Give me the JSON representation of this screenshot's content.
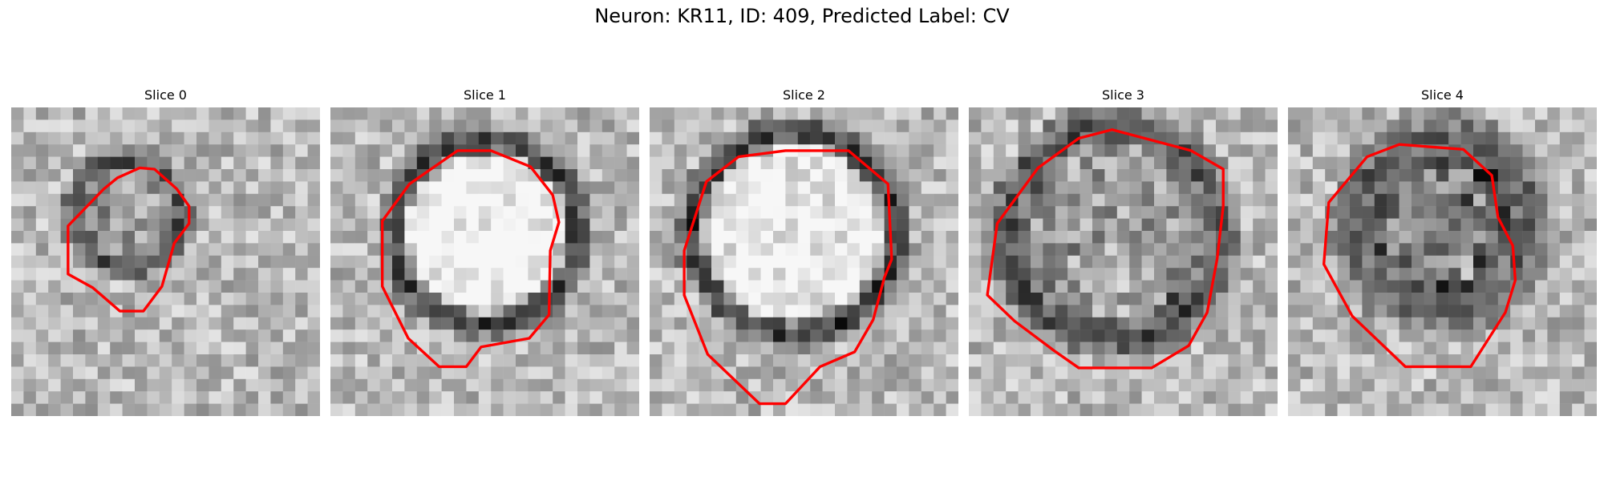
{
  "figure": {
    "title": "Neuron: KR11, ID: 409, Predicted Label: CV"
  },
  "panels": [
    {
      "title": "Slice 0"
    },
    {
      "title": "Slice 1"
    },
    {
      "title": "Slice 2"
    },
    {
      "title": "Slice 3"
    },
    {
      "title": "Slice 4"
    }
  ],
  "colors": {
    "contour": "#ff0000"
  }
}
